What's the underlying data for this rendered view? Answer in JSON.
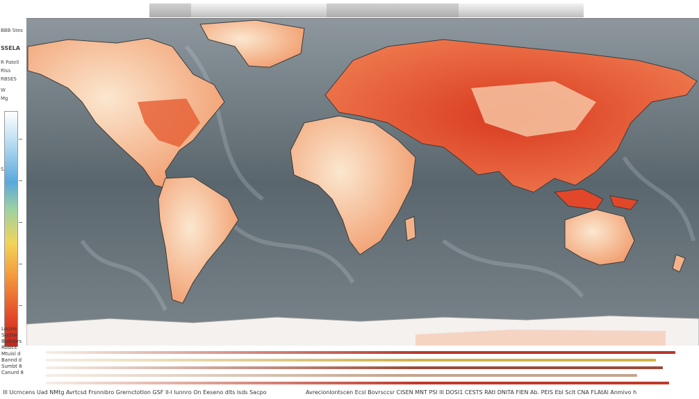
{
  "map": {
    "projection": "equirectangular",
    "ocean_color": "#5d6a72",
    "land_warm_color": "#e8542e",
    "land_hot_color": "#d93a20",
    "land_light_color": "#f7c9a3",
    "ice_color": "#f4f1ee",
    "palette": [
      "#ffffff",
      "#bfe0f2",
      "#5aa9dd",
      "#9fd2a0",
      "#f2d45a",
      "#f39a3c",
      "#e2472a",
      "#c9261a"
    ]
  },
  "legend": {
    "lines": [
      "BBB Stes",
      "SSELA",
      "R Patell",
      "Rlss",
      "RBSES",
      "W",
      "Mg",
      "SAI"
    ]
  },
  "stack_labels": [
    "Lucins",
    "Suchsi",
    "Bodntirs",
    "Ruslcs",
    "Mtuisl d",
    "Bannd d",
    "Sumbt 8",
    "Canurd 8"
  ],
  "bars": [
    {
      "color": "#b7352a",
      "fraction": 0.99
    },
    {
      "color": "#d0b24a",
      "fraction": 0.96
    },
    {
      "color": "#9a4a3a",
      "fraction": 0.97
    },
    {
      "color": "#c4a48e",
      "fraction": 0.93
    },
    {
      "color": "#c0392b",
      "fraction": 0.98
    }
  ],
  "footer": {
    "left": "Ill Ucrncens Uad NMtg Avrtcsd Frsnnibro Grernctotlon GSF II-l lunnro On Eeseno dlts lsds Sacpo",
    "right": "Avrecionlontscen  Ecsl Bovrsccsr CISEN MNT PSl lll DOSI1 CESTS RAtI DNITA FIEN Ab. PEIS Ebl Sclt CNA FLAtAl Anmivo h"
  }
}
